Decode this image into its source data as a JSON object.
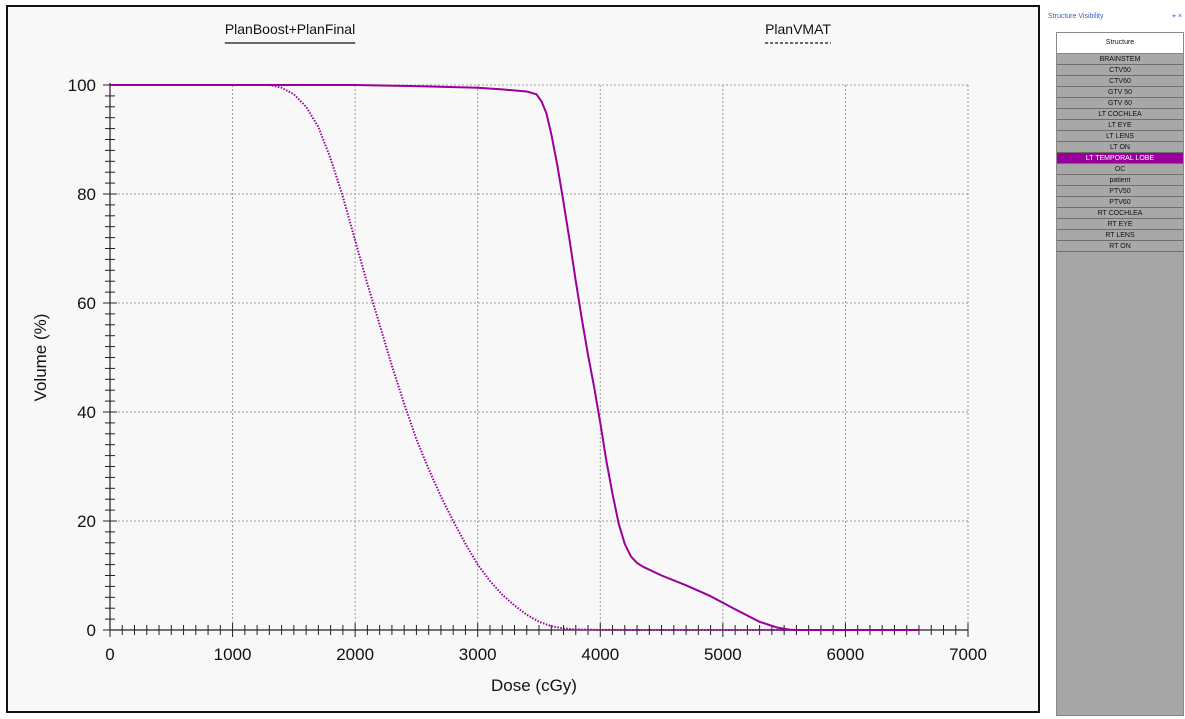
{
  "chart_data": {
    "type": "line",
    "xlabel": "Dose (cGy)",
    "ylabel": "Volume (%)",
    "xlim": [
      0,
      7000
    ],
    "ylim": [
      0,
      100
    ],
    "x_ticks": [
      0,
      1000,
      2000,
      3000,
      4000,
      5000,
      6000,
      7000
    ],
    "y_ticks": [
      0,
      20,
      40,
      60,
      80,
      100
    ],
    "grid": true,
    "legend_position": "top",
    "series": [
      {
        "name": "PlanBoost+PlanFinal",
        "line_style": "solid",
        "color": "#990099",
        "x": [
          0,
          1000,
          2000,
          2500,
          3000,
          3200,
          3400,
          3480,
          3520,
          3560,
          3600,
          3650,
          3700,
          3750,
          3800,
          3850,
          3900,
          3950,
          4000,
          4050,
          4100,
          4150,
          4200,
          4250,
          4300,
          4350,
          4500,
          4700,
          4900,
          5100,
          5300,
          5450,
          5550,
          5600,
          6000,
          6600
        ],
        "y": [
          100,
          100,
          100,
          99.8,
          99.5,
          99.2,
          98.8,
          98.3,
          97,
          94.8,
          91,
          85.2,
          78.5,
          71.5,
          64,
          57,
          50.5,
          44.5,
          38,
          31,
          25,
          19.5,
          15.8,
          13.5,
          12.3,
          11.6,
          10,
          8.2,
          6.2,
          3.8,
          1.5,
          0.4,
          0.05,
          0,
          0,
          0
        ]
      },
      {
        "name": "PlanVMAT",
        "line_style": "dotted",
        "color": "#990099",
        "x": [
          0,
          1300,
          1400,
          1500,
          1600,
          1700,
          1800,
          1900,
          2000,
          2100,
          2200,
          2300,
          2400,
          2500,
          2600,
          2700,
          2800,
          2900,
          3000,
          3100,
          3200,
          3300,
          3400,
          3500,
          3600,
          3700,
          3800,
          4000,
          4500,
          5000,
          5600
        ],
        "y": [
          100,
          100,
          99.5,
          98.3,
          96,
          92.3,
          86.5,
          79.5,
          71.5,
          63.5,
          56,
          48.5,
          41.5,
          35,
          29.5,
          24.5,
          20,
          15.8,
          12,
          9,
          6.5,
          4.5,
          2.8,
          1.5,
          0.7,
          0.3,
          0.1,
          0.02,
          0,
          0,
          0
        ]
      }
    ]
  },
  "structure_panel": {
    "title": "Structure Visibility",
    "controls": "⌖ ×",
    "header": "Structure",
    "selected_color": "#990099",
    "items": [
      {
        "label": "BRAINSTEM",
        "selected": false
      },
      {
        "label": "CTV50",
        "selected": false
      },
      {
        "label": "CTV60",
        "selected": false
      },
      {
        "label": "GTV 50",
        "selected": false
      },
      {
        "label": "GTV 60",
        "selected": false
      },
      {
        "label": "LT COCHLEA",
        "selected": false
      },
      {
        "label": "LT EYE",
        "selected": false
      },
      {
        "label": "LT LENS",
        "selected": false
      },
      {
        "label": "LT ON",
        "selected": false
      },
      {
        "label": "LT TEMPORAL LOBE",
        "selected": true
      },
      {
        "label": "OC",
        "selected": false
      },
      {
        "label": "patient",
        "selected": false
      },
      {
        "label": "PTV50",
        "selected": false
      },
      {
        "label": "PTV60",
        "selected": false
      },
      {
        "label": "RT COCHLEA",
        "selected": false
      },
      {
        "label": "RT EYE",
        "selected": false
      },
      {
        "label": "RT LENS",
        "selected": false
      },
      {
        "label": "RT ON",
        "selected": false
      }
    ]
  }
}
